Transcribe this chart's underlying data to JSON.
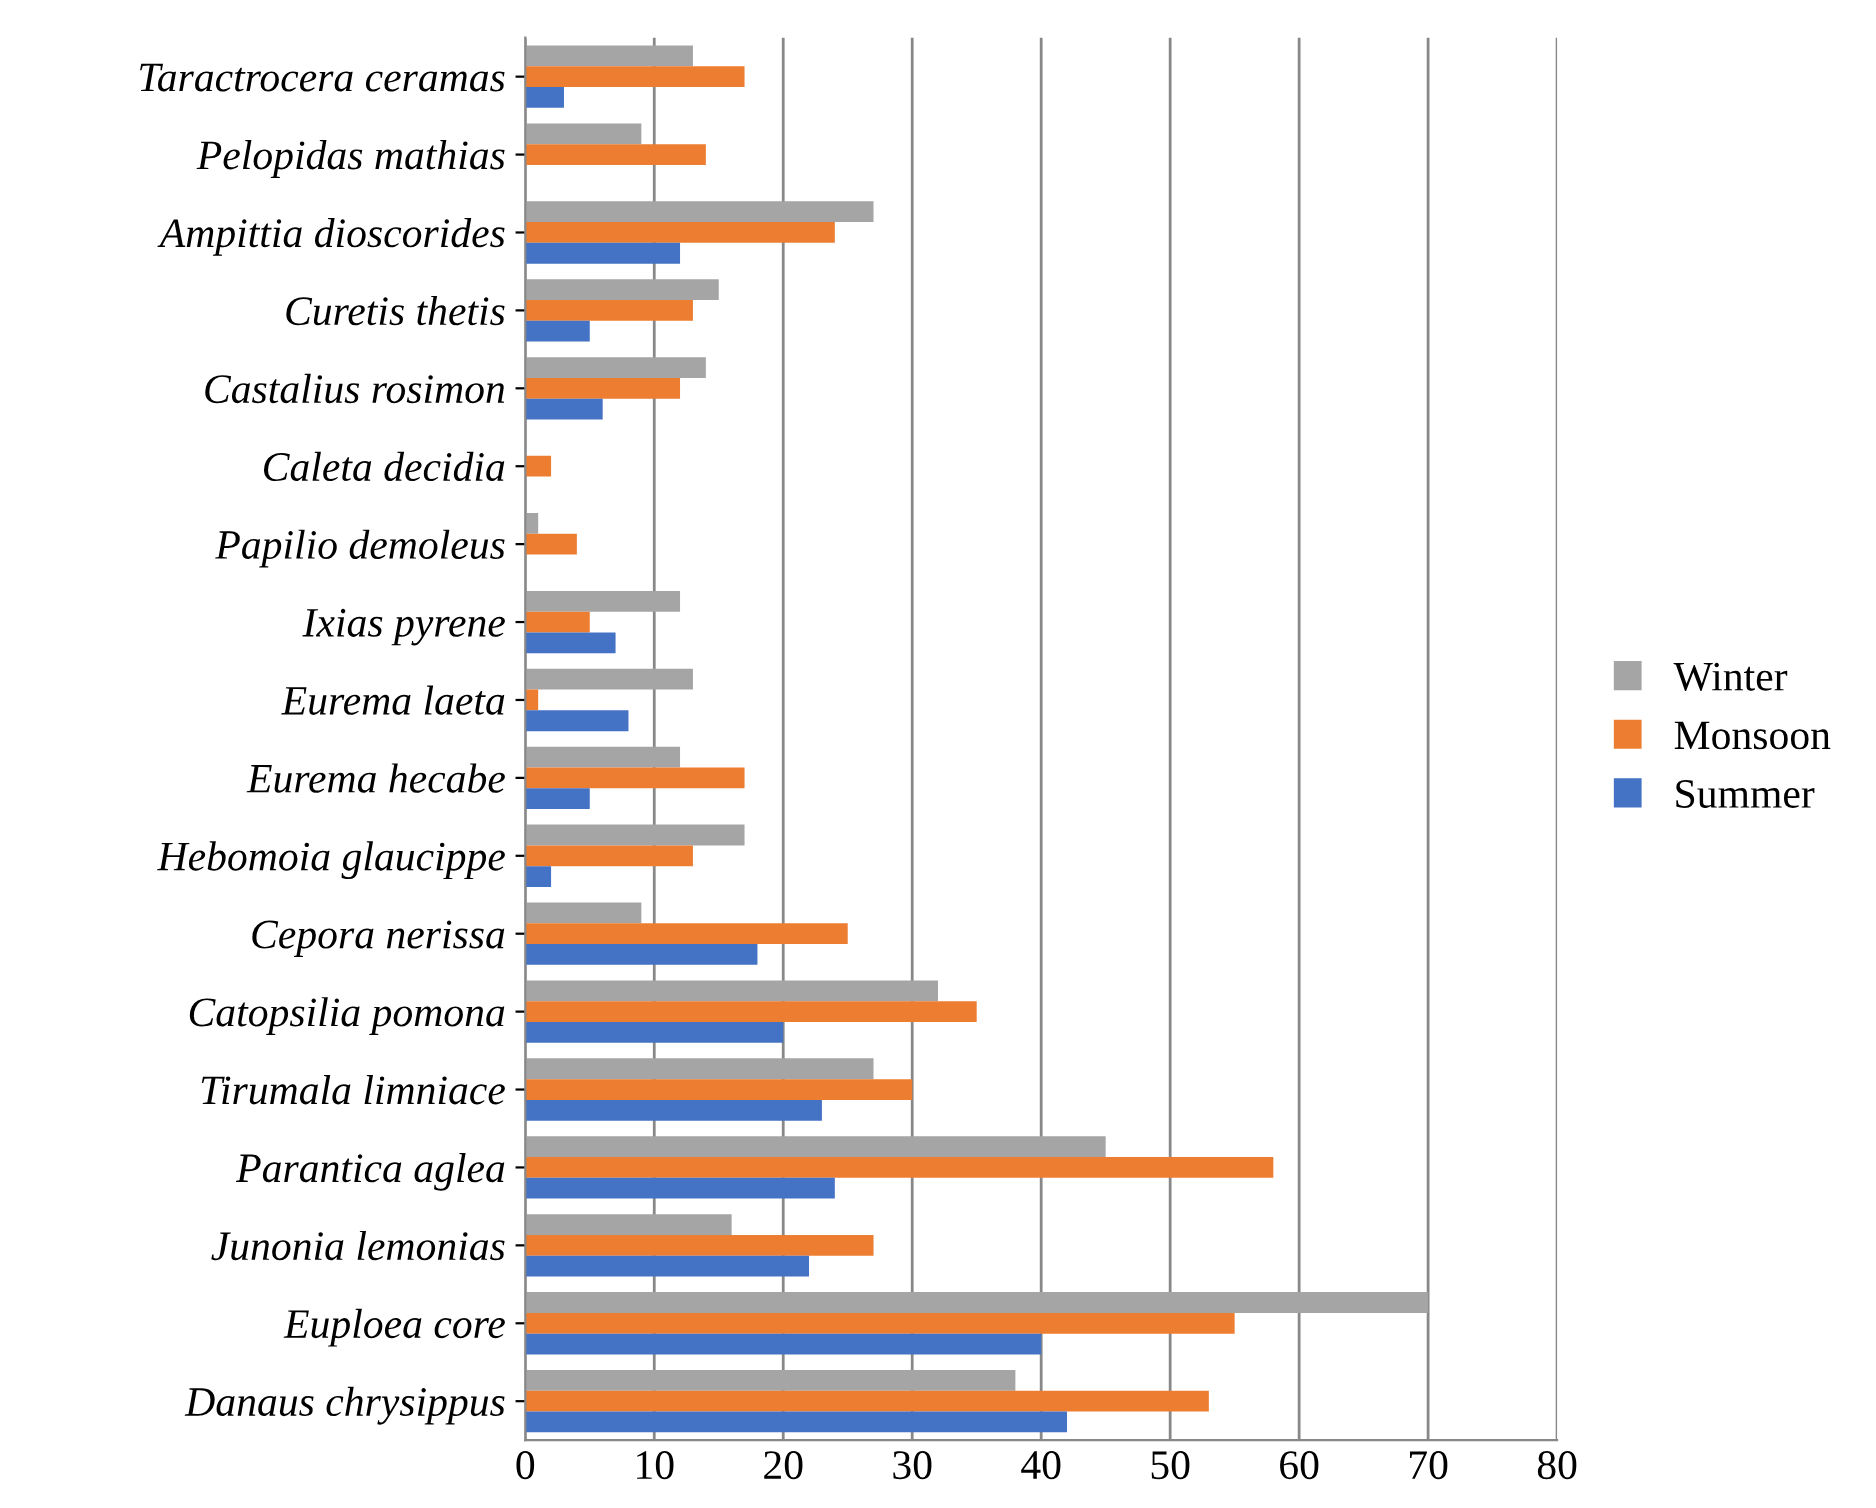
{
  "chart_data": {
    "type": "bar",
    "orientation": "horizontal",
    "categories": [
      "Taractrocera ceramas",
      "Pelopidas mathias",
      "Ampittia dioscorides",
      "Curetis thetis",
      "Castalius rosimon",
      "Caleta decidia",
      "Papilio demoleus",
      "Ixias pyrene",
      "Eurema laeta",
      "Eurema hecabe",
      "Hebomoia glaucippe",
      "Cepora nerissa",
      "Catopsilia pomona",
      "Tirumala limniace",
      "Parantica aglea",
      "Junonia lemonias",
      "Euploea core",
      "Danaus chrysippus"
    ],
    "series": [
      {
        "name": "Winter",
        "color": "#a5a5a5",
        "values": [
          13,
          9,
          27,
          15,
          14,
          null,
          1,
          12,
          13,
          12,
          17,
          9,
          32,
          27,
          45,
          16,
          70,
          38
        ]
      },
      {
        "name": "Monsoon",
        "color": "#ed7d31",
        "values": [
          17,
          14,
          24,
          13,
          12,
          2,
          4,
          5,
          1,
          17,
          13,
          25,
          35,
          30,
          58,
          27,
          55,
          53
        ]
      },
      {
        "name": "Summer",
        "color": "#4472c4",
        "values": [
          3,
          null,
          12,
          5,
          6,
          null,
          null,
          7,
          8,
          5,
          2,
          18,
          20,
          23,
          24,
          22,
          40,
          42
        ]
      }
    ],
    "xlim": [
      0,
      80
    ],
    "xticks": [
      0,
      10,
      20,
      30,
      40,
      50,
      60,
      70,
      80
    ],
    "grid": "x",
    "legend": "right"
  }
}
